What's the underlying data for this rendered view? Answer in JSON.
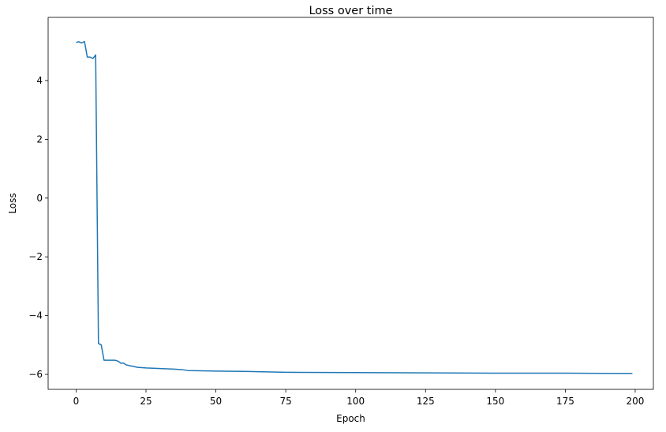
{
  "chart_data": {
    "type": "line",
    "title": "Loss over time",
    "x_label": "Epoch",
    "y_label": "Loss",
    "series": [
      {
        "name": "Loss",
        "color": "#1f77b4",
        "x": [
          0,
          1,
          2,
          3,
          4,
          5,
          6,
          7,
          8,
          9,
          10,
          11,
          12,
          13,
          14,
          15,
          16,
          17,
          18,
          20,
          22,
          25,
          30,
          35,
          38,
          40,
          50,
          60,
          75,
          100,
          125,
          150,
          175,
          199
        ],
        "values": [
          5.3,
          5.32,
          5.28,
          5.33,
          4.8,
          4.8,
          4.75,
          4.87,
          -4.95,
          -5.0,
          -5.52,
          -5.52,
          -5.52,
          -5.52,
          -5.52,
          -5.55,
          -5.62,
          -5.62,
          -5.68,
          -5.72,
          -5.76,
          -5.78,
          -5.8,
          -5.82,
          -5.84,
          -5.87,
          -5.89,
          -5.9,
          -5.93,
          -5.94,
          -5.95,
          -5.96,
          -5.96,
          -5.97
        ]
      }
    ],
    "xlim": [
      -10,
      206.5
    ],
    "ylim": [
      -6.51,
      6.15
    ],
    "xticks": [
      0,
      25,
      50,
      75,
      100,
      125,
      150,
      175,
      200
    ],
    "yticks": [
      {
        "value": -6,
        "label": "−6"
      },
      {
        "value": -4,
        "label": "−4"
      },
      {
        "value": -2,
        "label": "−2"
      },
      0,
      2,
      4
    ]
  }
}
